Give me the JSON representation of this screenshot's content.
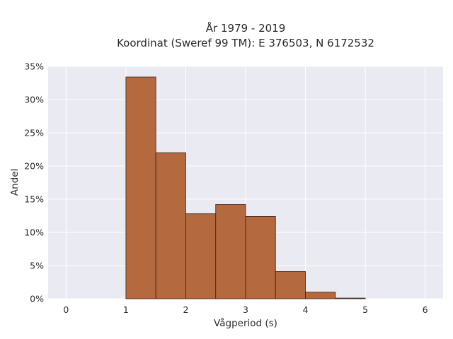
{
  "chart_data": {
    "type": "bar",
    "title_line1": "År 1979 - 2019",
    "title_line2": "Koordinat (Sweref 99 TM): E 376503, N 6172532",
    "xlabel": "Vågperiod (s)",
    "ylabel": "Andel",
    "xlim": [
      -0.3,
      6.3
    ],
    "ylim": [
      0,
      35
    ],
    "xticks": [
      0,
      1,
      2,
      3,
      4,
      5,
      6
    ],
    "yticks": [
      0,
      5,
      10,
      15,
      20,
      25,
      30,
      35
    ],
    "ytick_labels": [
      "0%",
      "5%",
      "10%",
      "15%",
      "20%",
      "25%",
      "30%",
      "35%"
    ],
    "grid": true,
    "bins": [
      {
        "start": 1.0,
        "end": 1.5,
        "value": 33.4
      },
      {
        "start": 1.5,
        "end": 2.0,
        "value": 22.0
      },
      {
        "start": 2.0,
        "end": 2.5,
        "value": 12.8
      },
      {
        "start": 2.5,
        "end": 3.0,
        "value": 14.2
      },
      {
        "start": 3.0,
        "end": 3.5,
        "value": 12.4
      },
      {
        "start": 3.5,
        "end": 4.0,
        "value": 4.1
      },
      {
        "start": 4.0,
        "end": 4.5,
        "value": 1.0
      },
      {
        "start": 4.5,
        "end": 5.0,
        "value": 0.1
      }
    ],
    "colors": {
      "bar_fill": "#b5693f",
      "bar_stroke": "#3a2318",
      "plot_bg": "#eaeaf2",
      "grid": "#ffffff"
    }
  }
}
